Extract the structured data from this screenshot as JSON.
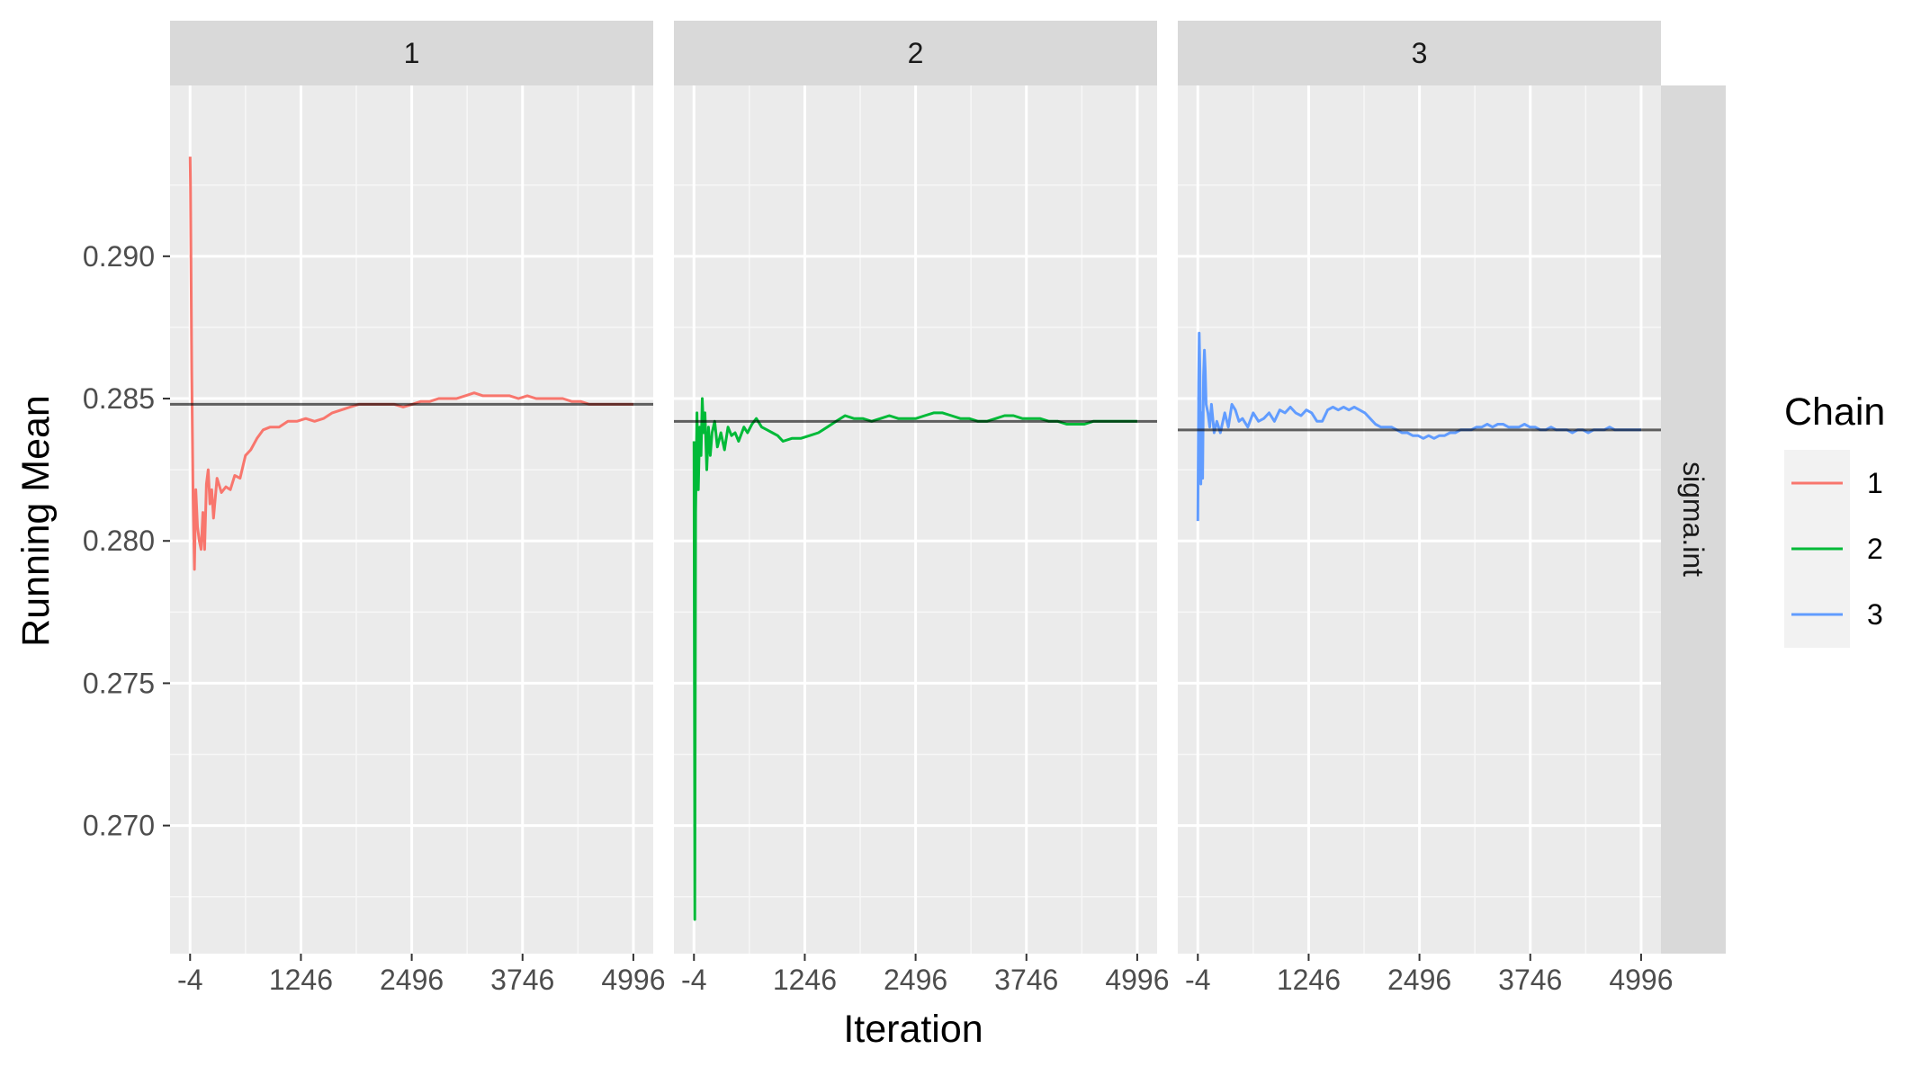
{
  "chart_data": {
    "type": "line",
    "facet_strips": [
      "1",
      "2",
      "3"
    ],
    "row_strip": "sigma.int",
    "xlabel": "Iteration",
    "ylabel": "Running Mean",
    "x_ticks": [
      -4,
      1246,
      2496,
      3746,
      4996
    ],
    "y_ticks": [
      0.27,
      0.275,
      0.28,
      0.285,
      0.29
    ],
    "y_tick_labels": [
      "0.270",
      "0.275",
      "0.280",
      "0.285",
      "0.290"
    ],
    "xlim": [
      -230,
      5220
    ],
    "ylim": [
      0.2655,
      0.296
    ],
    "grid": true,
    "legend": {
      "title": "Chain",
      "position": "right",
      "entries": [
        {
          "label": "1",
          "color": "#F8766D"
        },
        {
          "label": "2",
          "color": "#00BA38"
        },
        {
          "label": "3",
          "color": "#619CFF"
        }
      ]
    },
    "series": [
      {
        "facet": "1",
        "color": "#F8766D",
        "reference_mean": 0.2848,
        "points": [
          [
            -4,
            0.2935
          ],
          [
            0,
            0.2925
          ],
          [
            15,
            0.286
          ],
          [
            30,
            0.2815
          ],
          [
            45,
            0.279
          ],
          [
            60,
            0.2818
          ],
          [
            80,
            0.2805
          ],
          [
            100,
            0.28
          ],
          [
            120,
            0.2797
          ],
          [
            140,
            0.281
          ],
          [
            160,
            0.2797
          ],
          [
            180,
            0.282
          ],
          [
            200,
            0.2825
          ],
          [
            220,
            0.2813
          ],
          [
            240,
            0.2818
          ],
          [
            260,
            0.2808
          ],
          [
            300,
            0.2822
          ],
          [
            350,
            0.2817
          ],
          [
            400,
            0.2819
          ],
          [
            450,
            0.2818
          ],
          [
            500,
            0.2823
          ],
          [
            560,
            0.2822
          ],
          [
            620,
            0.283
          ],
          [
            680,
            0.2832
          ],
          [
            750,
            0.2836
          ],
          [
            820,
            0.2839
          ],
          [
            900,
            0.284
          ],
          [
            1000,
            0.284
          ],
          [
            1100,
            0.2842
          ],
          [
            1200,
            0.2842
          ],
          [
            1300,
            0.2843
          ],
          [
            1400,
            0.2842
          ],
          [
            1500,
            0.2843
          ],
          [
            1600,
            0.2845
          ],
          [
            1700,
            0.2846
          ],
          [
            1800,
            0.2847
          ],
          [
            1900,
            0.2848
          ],
          [
            2000,
            0.2848
          ],
          [
            2100,
            0.2848
          ],
          [
            2200,
            0.2848
          ],
          [
            2300,
            0.2848
          ],
          [
            2400,
            0.2847
          ],
          [
            2500,
            0.2848
          ],
          [
            2600,
            0.2849
          ],
          [
            2700,
            0.2849
          ],
          [
            2800,
            0.285
          ],
          [
            2900,
            0.285
          ],
          [
            3000,
            0.285
          ],
          [
            3100,
            0.2851
          ],
          [
            3200,
            0.2852
          ],
          [
            3300,
            0.2851
          ],
          [
            3400,
            0.2851
          ],
          [
            3500,
            0.2851
          ],
          [
            3600,
            0.2851
          ],
          [
            3700,
            0.285
          ],
          [
            3800,
            0.2851
          ],
          [
            3900,
            0.285
          ],
          [
            4000,
            0.285
          ],
          [
            4100,
            0.285
          ],
          [
            4200,
            0.285
          ],
          [
            4300,
            0.2849
          ],
          [
            4400,
            0.2849
          ],
          [
            4500,
            0.2848
          ],
          [
            4600,
            0.2848
          ],
          [
            4700,
            0.2848
          ],
          [
            4800,
            0.2848
          ],
          [
            4900,
            0.2848
          ],
          [
            4996,
            0.2848
          ]
        ]
      },
      {
        "facet": "2",
        "color": "#00BA38",
        "reference_mean": 0.2842,
        "points": [
          [
            -4,
            0.2835
          ],
          [
            5,
            0.2667
          ],
          [
            15,
            0.281
          ],
          [
            30,
            0.2845
          ],
          [
            45,
            0.2818
          ],
          [
            60,
            0.284
          ],
          [
            75,
            0.283
          ],
          [
            90,
            0.285
          ],
          [
            105,
            0.2838
          ],
          [
            120,
            0.2845
          ],
          [
            140,
            0.2825
          ],
          [
            160,
            0.284
          ],
          [
            180,
            0.283
          ],
          [
            200,
            0.2838
          ],
          [
            230,
            0.2842
          ],
          [
            260,
            0.2833
          ],
          [
            300,
            0.2838
          ],
          [
            340,
            0.2832
          ],
          [
            380,
            0.284
          ],
          [
            420,
            0.2837
          ],
          [
            460,
            0.2838
          ],
          [
            500,
            0.2835
          ],
          [
            560,
            0.284
          ],
          [
            600,
            0.2838
          ],
          [
            650,
            0.2841
          ],
          [
            700,
            0.2843
          ],
          [
            760,
            0.284
          ],
          [
            820,
            0.2839
          ],
          [
            880,
            0.2838
          ],
          [
            940,
            0.2837
          ],
          [
            1000,
            0.2835
          ],
          [
            1100,
            0.2836
          ],
          [
            1200,
            0.2836
          ],
          [
            1300,
            0.2837
          ],
          [
            1400,
            0.2838
          ],
          [
            1500,
            0.284
          ],
          [
            1600,
            0.2842
          ],
          [
            1700,
            0.2844
          ],
          [
            1800,
            0.2843
          ],
          [
            1900,
            0.2843
          ],
          [
            2000,
            0.2842
          ],
          [
            2100,
            0.2843
          ],
          [
            2200,
            0.2844
          ],
          [
            2300,
            0.2843
          ],
          [
            2400,
            0.2843
          ],
          [
            2500,
            0.2843
          ],
          [
            2600,
            0.2844
          ],
          [
            2700,
            0.2845
          ],
          [
            2800,
            0.2845
          ],
          [
            2900,
            0.2844
          ],
          [
            3000,
            0.2843
          ],
          [
            3100,
            0.2843
          ],
          [
            3200,
            0.2842
          ],
          [
            3300,
            0.2842
          ],
          [
            3400,
            0.2843
          ],
          [
            3500,
            0.2844
          ],
          [
            3600,
            0.2844
          ],
          [
            3700,
            0.2843
          ],
          [
            3800,
            0.2843
          ],
          [
            3900,
            0.2843
          ],
          [
            4000,
            0.2842
          ],
          [
            4100,
            0.2842
          ],
          [
            4200,
            0.2841
          ],
          [
            4300,
            0.2841
          ],
          [
            4400,
            0.2841
          ],
          [
            4500,
            0.2842
          ],
          [
            4600,
            0.2842
          ],
          [
            4700,
            0.2842
          ],
          [
            4800,
            0.2842
          ],
          [
            4900,
            0.2842
          ],
          [
            4996,
            0.2842
          ]
        ]
      },
      {
        "facet": "3",
        "color": "#619CFF",
        "reference_mean": 0.2839,
        "points": [
          [
            -4,
            0.2807
          ],
          [
            5,
            0.2855
          ],
          [
            12,
            0.2873
          ],
          [
            20,
            0.286
          ],
          [
            30,
            0.282
          ],
          [
            40,
            0.2845
          ],
          [
            50,
            0.2822
          ],
          [
            60,
            0.2858
          ],
          [
            70,
            0.2867
          ],
          [
            80,
            0.286
          ],
          [
            90,
            0.2848
          ],
          [
            110,
            0.2845
          ],
          [
            130,
            0.284
          ],
          [
            150,
            0.2848
          ],
          [
            180,
            0.2838
          ],
          [
            210,
            0.2842
          ],
          [
            250,
            0.2838
          ],
          [
            300,
            0.2845
          ],
          [
            340,
            0.284
          ],
          [
            380,
            0.2848
          ],
          [
            420,
            0.2846
          ],
          [
            460,
            0.2842
          ],
          [
            500,
            0.2843
          ],
          [
            560,
            0.284
          ],
          [
            620,
            0.2845
          ],
          [
            680,
            0.2842
          ],
          [
            740,
            0.2843
          ],
          [
            800,
            0.2845
          ],
          [
            860,
            0.2842
          ],
          [
            920,
            0.2846
          ],
          [
            980,
            0.2845
          ],
          [
            1040,
            0.2847
          ],
          [
            1100,
            0.2845
          ],
          [
            1160,
            0.2844
          ],
          [
            1220,
            0.2846
          ],
          [
            1280,
            0.2845
          ],
          [
            1340,
            0.2842
          ],
          [
            1400,
            0.2842
          ],
          [
            1460,
            0.2846
          ],
          [
            1520,
            0.2847
          ],
          [
            1580,
            0.2846
          ],
          [
            1640,
            0.2847
          ],
          [
            1700,
            0.2846
          ],
          [
            1760,
            0.2847
          ],
          [
            1820,
            0.2846
          ],
          [
            1880,
            0.2845
          ],
          [
            1940,
            0.2843
          ],
          [
            2000,
            0.2841
          ],
          [
            2060,
            0.284
          ],
          [
            2120,
            0.284
          ],
          [
            2180,
            0.284
          ],
          [
            2240,
            0.2839
          ],
          [
            2300,
            0.2838
          ],
          [
            2360,
            0.2838
          ],
          [
            2420,
            0.2837
          ],
          [
            2480,
            0.2837
          ],
          [
            2540,
            0.2836
          ],
          [
            2600,
            0.2837
          ],
          [
            2660,
            0.2836
          ],
          [
            2720,
            0.2837
          ],
          [
            2780,
            0.2837
          ],
          [
            2840,
            0.2838
          ],
          [
            2900,
            0.2838
          ],
          [
            2960,
            0.2839
          ],
          [
            3020,
            0.2839
          ],
          [
            3080,
            0.2839
          ],
          [
            3140,
            0.284
          ],
          [
            3200,
            0.284
          ],
          [
            3260,
            0.2841
          ],
          [
            3320,
            0.284
          ],
          [
            3380,
            0.2841
          ],
          [
            3440,
            0.2841
          ],
          [
            3500,
            0.284
          ],
          [
            3560,
            0.284
          ],
          [
            3620,
            0.284
          ],
          [
            3680,
            0.2841
          ],
          [
            3740,
            0.284
          ],
          [
            3800,
            0.284
          ],
          [
            3860,
            0.2839
          ],
          [
            3920,
            0.2839
          ],
          [
            3980,
            0.284
          ],
          [
            4040,
            0.2839
          ],
          [
            4100,
            0.2839
          ],
          [
            4160,
            0.2839
          ],
          [
            4220,
            0.2838
          ],
          [
            4280,
            0.2839
          ],
          [
            4340,
            0.2839
          ],
          [
            4400,
            0.2838
          ],
          [
            4460,
            0.2839
          ],
          [
            4520,
            0.2839
          ],
          [
            4580,
            0.2839
          ],
          [
            4640,
            0.284
          ],
          [
            4700,
            0.2839
          ],
          [
            4760,
            0.2839
          ],
          [
            4820,
            0.2839
          ],
          [
            4880,
            0.2839
          ],
          [
            4940,
            0.2839
          ],
          [
            4996,
            0.2839
          ]
        ]
      }
    ]
  }
}
